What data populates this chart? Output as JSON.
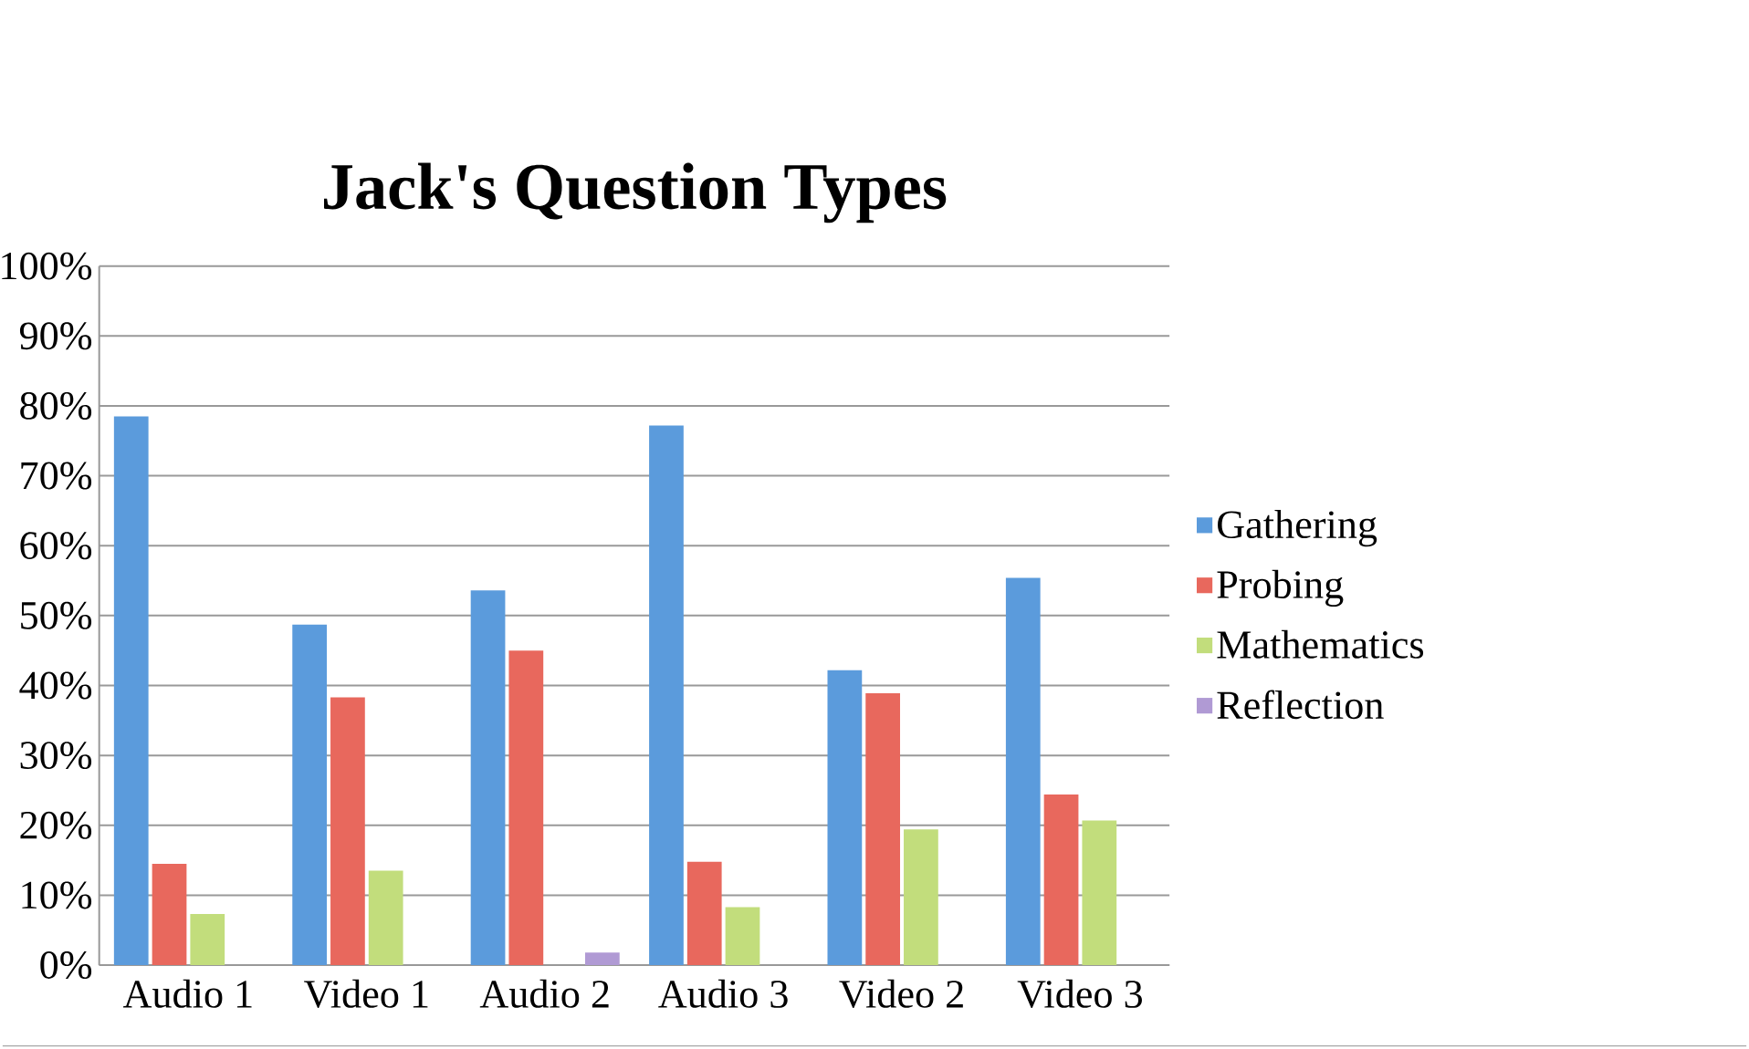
{
  "chart_data": {
    "type": "bar",
    "title": "Jack's Question Types",
    "categories": [
      "Audio 1",
      "Video 1",
      "Audio 2",
      "Audio 3",
      "Video 2",
      "Video 3"
    ],
    "series": [
      {
        "name": "Gathering",
        "color": "#5b9bdc",
        "values": [
          78.5,
          48.7,
          53.6,
          77.2,
          42.2,
          55.4
        ]
      },
      {
        "name": "Probing",
        "color": "#e8685d",
        "values": [
          14.5,
          38.3,
          45,
          14.8,
          38.9,
          24.4
        ]
      },
      {
        "name": "Mathematics",
        "color": "#c2dd7c",
        "values": [
          7.3,
          13.5,
          0,
          8.3,
          19.4,
          20.7
        ]
      },
      {
        "name": "Reflection",
        "color": "#b09ad4",
        "values": [
          0,
          0,
          1.8,
          0,
          0,
          0
        ]
      }
    ],
    "ylim": [
      0,
      100
    ],
    "yticks": [
      {
        "value": 0,
        "label": "0%"
      },
      {
        "value": 10,
        "label": "10%"
      },
      {
        "value": 20,
        "label": "20%"
      },
      {
        "value": 30,
        "label": "30%"
      },
      {
        "value": 40,
        "label": "40%"
      },
      {
        "value": 50,
        "label": "50%"
      },
      {
        "value": 60,
        "label": "60%"
      },
      {
        "value": 70,
        "label": "70%"
      },
      {
        "value": 80,
        "label": "80%"
      },
      {
        "value": 90,
        "label": "90%"
      },
      {
        "value": 100,
        "label": "100%"
      }
    ],
    "grid": "y",
    "legend": "right"
  }
}
